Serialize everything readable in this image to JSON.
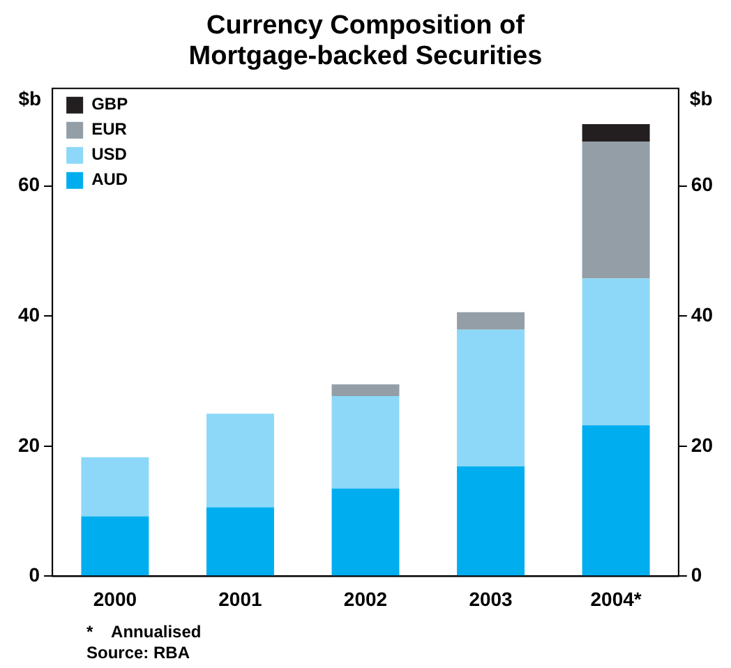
{
  "chart_data": {
    "type": "bar",
    "title": "Currency Composition of Mortgage-backed Securities",
    "ylabel": "$b",
    "y2label": "$b",
    "categories": [
      "2000",
      "2001",
      "2002",
      "2003",
      "2004*"
    ],
    "stacked": true,
    "series": [
      {
        "name": "AUD",
        "color": "#00aeef",
        "values": [
          9.2,
          10.6,
          13.5,
          16.9,
          23.2
        ]
      },
      {
        "name": "USD",
        "color": "#8dd8f8",
        "values": [
          9.1,
          14.4,
          14.2,
          21.0,
          22.6
        ]
      },
      {
        "name": "EUR",
        "color": "#939ea6",
        "values": [
          null,
          null,
          1.8,
          2.7,
          21.0
        ]
      },
      {
        "name": "GBP",
        "color": "#231f20",
        "values": [
          null,
          null,
          null,
          null,
          2.7
        ]
      }
    ],
    "ylim": [
      0,
      75
    ],
    "yticks": [
      0,
      20,
      40,
      60
    ],
    "y2lim": [
      0,
      75
    ],
    "y2ticks": [
      0,
      20,
      40,
      60
    ],
    "legend": "top left",
    "annotations": [
      "*    Annualised",
      "Source: RBA"
    ]
  }
}
